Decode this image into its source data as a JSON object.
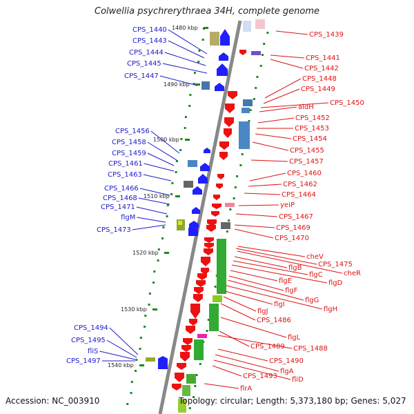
{
  "title": "Colwellia psychrerythraea 34H, complete genome",
  "footer": {
    "accession": "Accession: NC_003910",
    "info": "Topology: circular; Length: 5,373,180 bp; Genes: 5,027"
  },
  "colors": {
    "backbone": "#888888",
    "left_label": "#1a1acc",
    "right_label": "#dd1111",
    "plus_strand": "#1f1fff",
    "minus_strand": "#ee1111",
    "tick": "#1b8a1b"
  },
  "kbp_ticks": [
    "1480 kbp",
    "1490 kbp",
    "1500 kbp",
    "1510 kbp",
    "1520 kbp",
    "1530 kbp",
    "1540 kbp"
  ],
  "left_labels": [
    "CPS_1440",
    "CPS_1443",
    "CPS_1444",
    "CPS_1445",
    "CPS_1447",
    "CPS_1456",
    "CPS_1458",
    "CPS_1459",
    "CPS_1461",
    "CPS_1463",
    "CPS_1466",
    "CPS_1468",
    "CPS_1471",
    "flgM",
    "CPS_1473",
    "CPS_1494",
    "CPS_1495",
    "fliS",
    "CPS_1497"
  ],
  "right_labels": [
    "CPS_1439",
    "CPS_1441",
    "CPS_1442",
    "CPS_1448",
    "CPS_1449",
    "CPS_1450",
    "aldH",
    "CPS_1452",
    "CPS_1453",
    "CPS_1454",
    "CPS_1455",
    "CPS_1457",
    "CPS_1460",
    "CPS_1462",
    "CPS_1464",
    "yeiP",
    "CPS_1467",
    "CPS_1469",
    "CPS_1470",
    "cheV",
    "CPS_1475",
    "cheR",
    "flgB",
    "flgC",
    "flgD",
    "flgE",
    "flgF",
    "flgG",
    "flgH",
    "flgI",
    "flgJ",
    "CPS_1486",
    "flgL",
    "CPS_1489",
    "CPS_1488",
    "CPS_1490",
    "flgA",
    "fliD",
    "CPS_1493",
    "flrA"
  ]
}
